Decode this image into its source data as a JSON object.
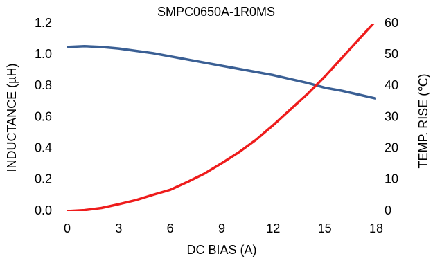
{
  "chart_data": {
    "type": "line",
    "title": "SMPC0650A-1R0MS",
    "x_label": "DC BIAS (A)",
    "y_label": "INDUCTANCE (µH)",
    "y2_label": "TEMP. RISE (℃)",
    "x": [
      0,
      1,
      2,
      3,
      4,
      5,
      6,
      7,
      8,
      9,
      10,
      11,
      12,
      13,
      14,
      15,
      16,
      17,
      18
    ],
    "series": [
      {
        "name": "Inductance",
        "color": "#3a5f94",
        "values": [
          1.05,
          1.055,
          1.05,
          1.04,
          1.025,
          1.01,
          0.99,
          0.97,
          0.95,
          0.93,
          0.91,
          0.89,
          0.87,
          0.845,
          0.82,
          0.79,
          0.77,
          0.745,
          0.72
        ]
      },
      {
        "name": "Temp. Rise",
        "color": "#ee1c1c",
        "axis": "y2",
        "values": [
          0,
          0.3,
          1,
          2.2,
          3.5,
          5.2,
          6.8,
          9.3,
          12,
          15.3,
          18.8,
          22.8,
          27.5,
          32.5,
          37.5,
          43,
          49,
          55,
          61
        ]
      }
    ],
    "xlim": [
      0,
      18
    ],
    "xticks": [
      0,
      3,
      6,
      9,
      12,
      15,
      18
    ],
    "ylim": [
      0,
      1.2
    ],
    "yticks": [
      {
        "value": 0,
        "label": "0.0"
      },
      {
        "value": 0.2,
        "label": "0.2"
      },
      {
        "value": 0.4,
        "label": "0.4"
      },
      {
        "value": 0.6,
        "label": "0.6"
      },
      {
        "value": 0.8,
        "label": "0.8"
      },
      {
        "value": 1,
        "label": "1.0"
      },
      {
        "value": 1.2,
        "label": "1.2"
      }
    ],
    "y2lim": [
      0,
      60
    ],
    "y2ticks": [
      0,
      10,
      20,
      30,
      40,
      50,
      60
    ]
  }
}
